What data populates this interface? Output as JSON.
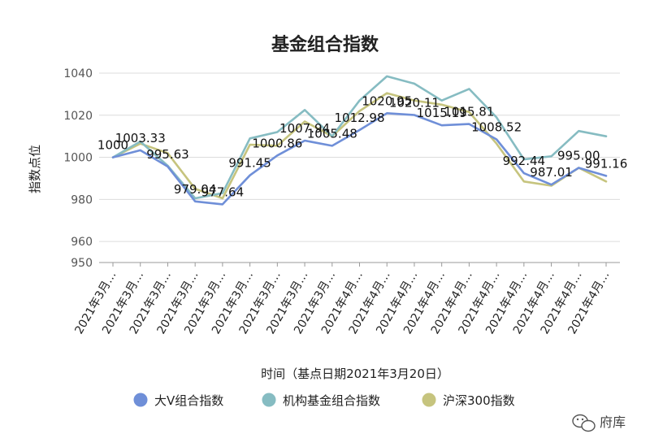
{
  "chart_data": {
    "type": "line",
    "title": "基金组合指数",
    "xlabel": "时间（基点日期2021年3月20日）",
    "ylabel": "指数点位",
    "ylim": [
      950,
      1040
    ],
    "y_ticks": [
      950,
      960,
      980,
      1000,
      1020,
      1040
    ],
    "x_tick_label": "2021年3月…",
    "x_tick_labels": [
      "2021年3月…",
      "2021年3月…",
      "2021年3月…",
      "2021年3月…",
      "2021年3月…",
      "2021年3月…",
      "2021年3月…",
      "2021年3月…",
      "2021年3月…",
      "2021年4月…",
      "2021年4月…",
      "2021年4月…",
      "2021年4月…",
      "2021年4月…",
      "2021年4月…",
      "2021年4月…",
      "2021年4月…",
      "2021年4月…",
      "2021年4月…"
    ],
    "grid": true,
    "legend_position": "bottom",
    "series": [
      {
        "name": "大V组合指数",
        "color": "#6f8fd8",
        "values": [
          1000,
          1003.33,
          995.63,
          979.04,
          977.64,
          991.45,
          1000.86,
          1007.94,
          1005.48,
          1012.98,
          1020.95,
          1020.11,
          1015.19,
          1015.81,
          1008.52,
          992.44,
          987.01,
          995.0,
          991.16
        ]
      },
      {
        "name": "机构基金组合指数",
        "color": "#86bcc2",
        "values": [
          1000,
          1007.5,
          996,
          980.5,
          983,
          1009,
          1012,
          1022.5,
          1010,
          1027,
          1038.5,
          1035,
          1027,
          1032.5,
          1019,
          999,
          1000.5,
          1012.5,
          1010
        ]
      },
      {
        "name": "沪深300指数",
        "color": "#c6c47e",
        "values": [
          1000,
          1006.5,
          1002,
          985,
          980.5,
          1006,
          1005.5,
          1017,
          1010,
          1022,
          1030.5,
          1027,
          1025,
          1021.5,
          1006.5,
          988.5,
          986.5,
          995,
          988.5
        ]
      }
    ],
    "data_labels": [
      {
        "index": 0,
        "text": "1000"
      },
      {
        "index": 1,
        "text": "1003.33"
      },
      {
        "index": 2,
        "text": "995.63"
      },
      {
        "index": 3,
        "text": "979.04"
      },
      {
        "index": 4,
        "text": "977.64"
      },
      {
        "index": 5,
        "text": "991.45"
      },
      {
        "index": 6,
        "text": "1000.86"
      },
      {
        "index": 7,
        "text": "1007.94"
      },
      {
        "index": 8,
        "text": "1005.48"
      },
      {
        "index": 9,
        "text": "1012.98"
      },
      {
        "index": 10,
        "text": "1020.95"
      },
      {
        "index": 11,
        "text": "1020.11"
      },
      {
        "index": 12,
        "text": "1015.19"
      },
      {
        "index": 13,
        "text": "1015.81"
      },
      {
        "index": 14,
        "text": "1008.52"
      },
      {
        "index": 15,
        "text": "992.44"
      },
      {
        "index": 16,
        "text": "987.01"
      },
      {
        "index": 17,
        "text": "995.00"
      },
      {
        "index": 18,
        "text": "991.16"
      }
    ]
  },
  "watermark": {
    "text": "府库",
    "icon": "wechat-icon"
  }
}
